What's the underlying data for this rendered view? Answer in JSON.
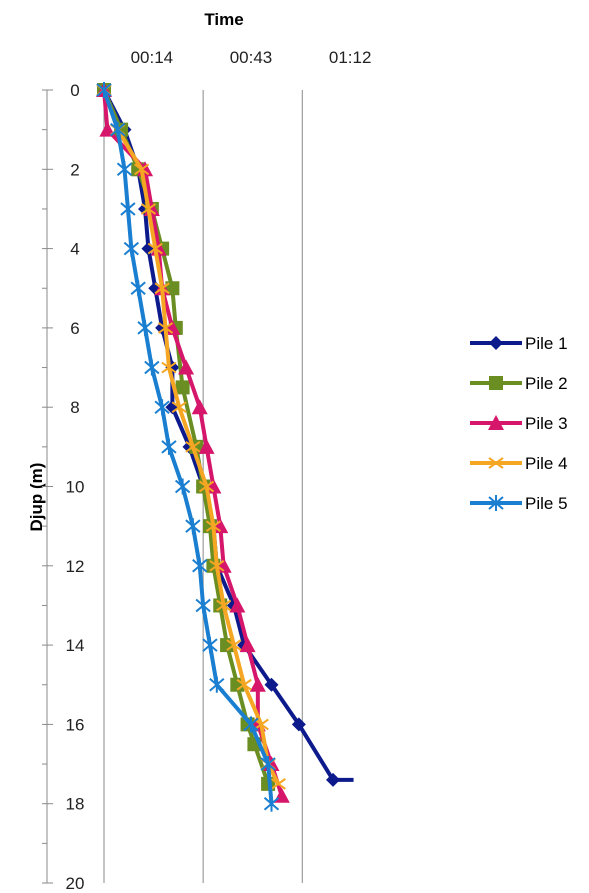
{
  "chart_data": {
    "type": "line",
    "title": "",
    "xlabel": "Time",
    "ylabel": "Djup (m)",
    "x_axis_position": "top",
    "y_axis_inverted": true,
    "x_unit": "mm:ss",
    "xlim": [
      "-00:14",
      "01:26"
    ],
    "ylim": [
      0,
      20
    ],
    "x_tick_labels": [
      "00:14",
      "00:43",
      "01:12"
    ],
    "y_tick_labels": [
      "0",
      "2",
      "4",
      "6",
      "8",
      "10",
      "12",
      "14",
      "16",
      "18",
      "20"
    ],
    "grid": "vertical",
    "legend_position": "right",
    "series": [
      {
        "name": "Pile 1",
        "color": "#0d1a8c",
        "marker": "diamond",
        "points": [
          {
            "x": "00:00",
            "y": 0
          },
          {
            "x": "00:06",
            "y": 1
          },
          {
            "x": "00:10",
            "y": 2
          },
          {
            "x": "00:12",
            "y": 3
          },
          {
            "x": "00:13",
            "y": 4
          },
          {
            "x": "00:15",
            "y": 5
          },
          {
            "x": "00:17",
            "y": 6
          },
          {
            "x": "00:20",
            "y": 7
          },
          {
            "x": "00:20",
            "y": 8
          },
          {
            "x": "00:25",
            "y": 9
          },
          {
            "x": "00:29",
            "y": 10
          },
          {
            "x": "00:32",
            "y": 11
          },
          {
            "x": "00:33",
            "y": 12
          },
          {
            "x": "00:38",
            "y": 13
          },
          {
            "x": "00:41",
            "y": 14
          },
          {
            "x": "00:49",
            "y": 15
          },
          {
            "x": "00:57",
            "y": 16
          },
          {
            "x": "01:07",
            "y": 17.4
          },
          {
            "x": "01:13",
            "y": 17.4
          }
        ]
      },
      {
        "name": "Pile 2",
        "color": "#6b8e23",
        "marker": "square",
        "points": [
          {
            "x": "00:00",
            "y": 0
          },
          {
            "x": "00:05",
            "y": 1
          },
          {
            "x": "00:10",
            "y": 2
          },
          {
            "x": "00:14",
            "y": 3
          },
          {
            "x": "00:17",
            "y": 4
          },
          {
            "x": "00:20",
            "y": 5
          },
          {
            "x": "00:21",
            "y": 6
          },
          {
            "x": "00:23",
            "y": 7.5
          },
          {
            "x": "00:27",
            "y": 9
          },
          {
            "x": "00:29",
            "y": 10
          },
          {
            "x": "00:31",
            "y": 11
          },
          {
            "x": "00:32",
            "y": 12
          },
          {
            "x": "00:34",
            "y": 13
          },
          {
            "x": "00:36",
            "y": 14
          },
          {
            "x": "00:39",
            "y": 15
          },
          {
            "x": "00:42",
            "y": 16
          },
          {
            "x": "00:44",
            "y": 16.5
          },
          {
            "x": "00:48",
            "y": 17.5
          }
        ]
      },
      {
        "name": "Pile 3",
        "color": "#d6166a",
        "marker": "triangle",
        "points": [
          {
            "x": "00:00",
            "y": 0
          },
          {
            "x": "00:01",
            "y": 1
          },
          {
            "x": "00:12",
            "y": 2
          },
          {
            "x": "00:14",
            "y": 3
          },
          {
            "x": "00:16",
            "y": 4
          },
          {
            "x": "00:17",
            "y": 5
          },
          {
            "x": "00:20",
            "y": 6
          },
          {
            "x": "00:24",
            "y": 7
          },
          {
            "x": "00:28",
            "y": 8
          },
          {
            "x": "00:30",
            "y": 9
          },
          {
            "x": "00:32",
            "y": 10
          },
          {
            "x": "00:34",
            "y": 11
          },
          {
            "x": "00:35",
            "y": 12
          },
          {
            "x": "00:39",
            "y": 13
          },
          {
            "x": "00:42",
            "y": 14
          },
          {
            "x": "00:45",
            "y": 15
          },
          {
            "x": "00:45",
            "y": 16
          },
          {
            "x": "00:49",
            "y": 17
          },
          {
            "x": "00:52",
            "y": 17.8
          }
        ]
      },
      {
        "name": "Pile 4",
        "color": "#f5a623",
        "marker": "x",
        "points": [
          {
            "x": "00:00",
            "y": 0
          },
          {
            "x": "00:04",
            "y": 1
          },
          {
            "x": "00:11",
            "y": 2
          },
          {
            "x": "00:13",
            "y": 3
          },
          {
            "x": "00:15",
            "y": 4
          },
          {
            "x": "00:17",
            "y": 5
          },
          {
            "x": "00:18",
            "y": 6
          },
          {
            "x": "00:19",
            "y": 7
          },
          {
            "x": "00:22",
            "y": 8
          },
          {
            "x": "00:26",
            "y": 9
          },
          {
            "x": "00:30",
            "y": 10
          },
          {
            "x": "00:32",
            "y": 11
          },
          {
            "x": "00:33",
            "y": 12
          },
          {
            "x": "00:35",
            "y": 13
          },
          {
            "x": "00:38",
            "y": 14
          },
          {
            "x": "00:41",
            "y": 15
          },
          {
            "x": "00:46",
            "y": 16
          },
          {
            "x": "00:48",
            "y": 17
          },
          {
            "x": "00:51",
            "y": 17.5
          }
        ]
      },
      {
        "name": "Pile 5",
        "color": "#1a7fd1",
        "marker": "asterisk",
        "points": [
          {
            "x": "00:00",
            "y": 0
          },
          {
            "x": "00:04",
            "y": 1
          },
          {
            "x": "00:06",
            "y": 2
          },
          {
            "x": "00:07",
            "y": 3
          },
          {
            "x": "00:08",
            "y": 4
          },
          {
            "x": "00:10",
            "y": 5
          },
          {
            "x": "00:12",
            "y": 6
          },
          {
            "x": "00:14",
            "y": 7
          },
          {
            "x": "00:17",
            "y": 8
          },
          {
            "x": "00:19",
            "y": 9
          },
          {
            "x": "00:23",
            "y": 10
          },
          {
            "x": "00:26",
            "y": 11
          },
          {
            "x": "00:28",
            "y": 12
          },
          {
            "x": "00:29",
            "y": 13
          },
          {
            "x": "00:31",
            "y": 14
          },
          {
            "x": "00:33",
            "y": 15
          },
          {
            "x": "00:43",
            "y": 16
          },
          {
            "x": "00:48",
            "y": 17
          },
          {
            "x": "00:49",
            "y": 18
          }
        ]
      }
    ]
  }
}
